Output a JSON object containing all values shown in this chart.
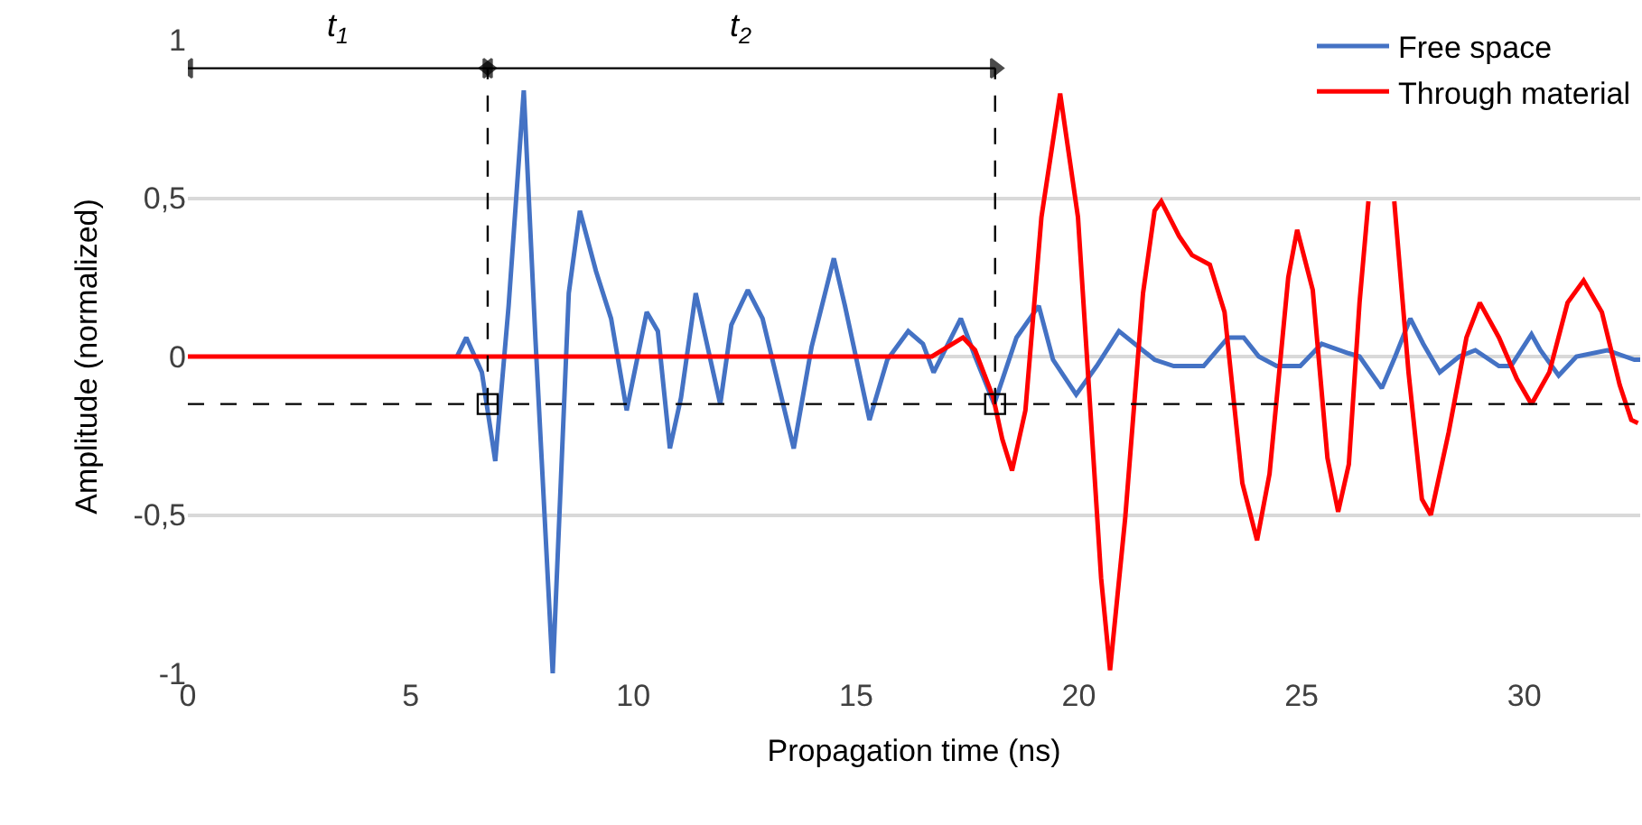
{
  "chart_data": {
    "type": "line",
    "xlabel": "Propagation time (ns)",
    "ylabel": "Amplitude (normalized)",
    "xlim": [
      0,
      32.6
    ],
    "xticks": [
      0,
      5,
      10,
      15,
      20,
      25,
      30
    ],
    "ylim": [
      -1,
      1
    ],
    "yticks": [
      {
        "value": -1,
        "label": "-1"
      },
      {
        "value": -0.5,
        "label": "-0,5"
      },
      0,
      {
        "value": 0.5,
        "label": "0,5"
      },
      1
    ],
    "grid": "y",
    "legend": "top right",
    "marker": "none",
    "line_style": "solid",
    "series": [
      {
        "name": "Free space",
        "color": "#4472c4",
        "x": [
          6.04,
          6.25,
          6.6,
          6.9,
          7.2,
          7.54,
          7.8,
          8.19,
          8.55,
          8.8,
          9.16,
          9.5,
          9.85,
          10.3,
          10.55,
          10.82,
          11.07,
          11.4,
          11.95,
          12.2,
          12.57,
          12.9,
          13.6,
          14.0,
          14.5,
          14.75,
          15.3,
          15.7,
          16.17,
          16.5,
          16.74,
          17.35,
          17.67,
          18.1,
          18.6,
          19.1,
          19.42,
          19.94,
          20.4,
          20.9,
          21.7,
          22.13,
          22.8,
          23.35,
          23.7,
          24.04,
          24.44,
          24.97,
          25.45,
          26.06,
          26.3,
          26.8,
          27.1,
          27.44,
          27.73,
          28.1,
          28.54,
          28.9,
          29.43,
          29.7,
          30.16,
          30.36,
          30.77,
          31.17,
          31.86,
          32.47,
          32.6
        ],
        "values": [
          0,
          0.06,
          -0.05,
          -0.33,
          0.16,
          0.84,
          0.06,
          -1.0,
          0.2,
          0.46,
          0.27,
          0.12,
          -0.17,
          0.14,
          0.08,
          -0.29,
          -0.13,
          0.2,
          -0.15,
          0.1,
          0.21,
          0.12,
          -0.29,
          0.03,
          0.31,
          0.16,
          -0.2,
          -0.01,
          0.08,
          0.04,
          -0.05,
          0.12,
          0,
          -0.15,
          0.06,
          0.16,
          -0.01,
          -0.12,
          -0.03,
          0.08,
          -0.01,
          -0.03,
          -0.03,
          0.06,
          0.06,
          0,
          -0.03,
          -0.03,
          0.04,
          0.01,
          0,
          -0.1,
          0,
          0.12,
          0.04,
          -0.05,
          0,
          0.02,
          -0.03,
          -0.03,
          0.07,
          0.02,
          -0.06,
          0,
          0.02,
          -0.01,
          -0.01
        ]
      },
      {
        "name": "Through material",
        "color": "#ff0000",
        "x": [
          0,
          1,
          2,
          3,
          4,
          5,
          6,
          7,
          8,
          9,
          10,
          11,
          12,
          13,
          14,
          15,
          16,
          16.7,
          17.4,
          17.67,
          18.08,
          18.28,
          18.5,
          18.8,
          19.16,
          19.58,
          19.98,
          20.5,
          20.7,
          21.04,
          21.44,
          21.7,
          21.85,
          22.25,
          22.54,
          22.94,
          23.27,
          23.67,
          24.0,
          24.28,
          24.7,
          24.9,
          25.25,
          25.58,
          25.82,
          26.06,
          26.3,
          26.5,
          26.8,
          27.08,
          27.4,
          27.7,
          27.9,
          28.3,
          28.7,
          29.0,
          29.43,
          29.83,
          30.16,
          30.56,
          30.97,
          31.33,
          31.74,
          32.14,
          32.4,
          32.55
        ],
        "values": [
          0,
          0,
          0,
          0,
          0,
          0,
          0,
          0,
          0,
          0,
          0,
          0,
          0,
          0,
          0,
          0,
          0,
          0,
          0.06,
          0.02,
          -0.13,
          -0.26,
          -0.36,
          -0.17,
          0.44,
          0.83,
          0.44,
          -0.7,
          -0.99,
          -0.51,
          0.2,
          0.46,
          0.49,
          0.38,
          0.32,
          0.29,
          0.14,
          -0.4,
          -0.58,
          -0.37,
          0.25,
          0.4,
          0.21,
          -0.32,
          -0.49,
          -0.34,
          0.17,
          0.49,
          null,
          0.49,
          -0.05,
          -0.45,
          -0.5,
          -0.24,
          0.06,
          0.17,
          0.06,
          -0.07,
          -0.15,
          -0.05,
          0.17,
          0.24,
          0.14,
          -0.09,
          -0.2,
          -0.21
        ]
      },
      {
        "type": "scatter",
        "marker": "square",
        "color": "#000000",
        "x": [
          6.73,
          18.12
        ],
        "values": [
          -0.15,
          -0.15
        ]
      },
      {
        "type": "line",
        "marker": "triangle",
        "color": "#000000",
        "x": [
          0,
          6.73
        ],
        "values": [
          0.91,
          0.91
        ]
      },
      {
        "type": "line",
        "marker": "triangle",
        "color": "#000000",
        "x": [
          6.73,
          18.12
        ],
        "values": [
          0.91,
          0.91
        ]
      }
    ],
    "ref_lines": [
      {
        "axis": "y",
        "value": -0.15,
        "color": "#000000",
        "line_style": "dashed"
      },
      {
        "axis": "x",
        "value": 6.73,
        "color": "#000000",
        "line_style": "dashed"
      },
      {
        "axis": "x",
        "value": 18.12,
        "color": "#000000",
        "line_style": "dashed"
      }
    ],
    "annotations": [
      {
        "text": "t$_{1}$",
        "x": 3.37,
        "y": 0.91
      },
      {
        "text": "t$_{2}$",
        "x": 12.4,
        "y": 0.91
      }
    ]
  }
}
